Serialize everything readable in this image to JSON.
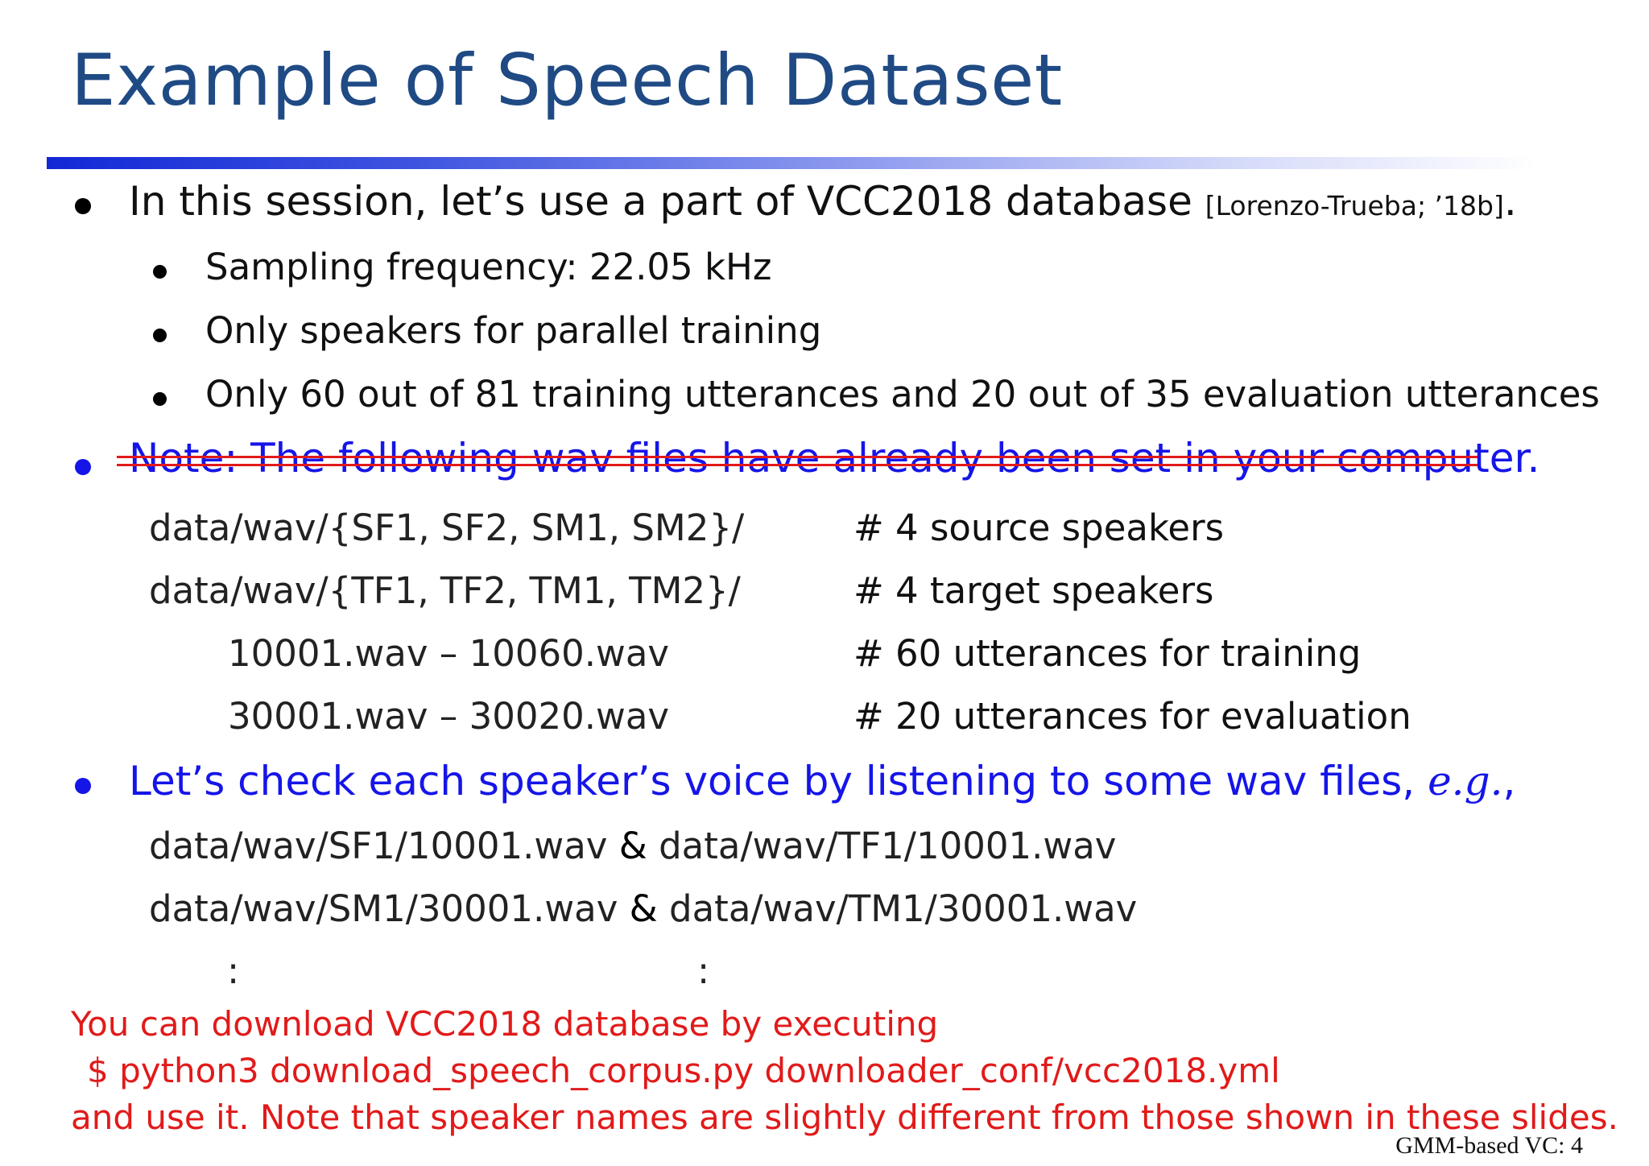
{
  "slide": {
    "title": "Example of Speech Dataset",
    "footer": "GMM-based VC: 4",
    "colors": {
      "title": "#1f4a84",
      "rule_start": "#1228d6",
      "blue_text": "#1515e8",
      "red_text": "#e11a1a"
    }
  },
  "bullets": {
    "intro": {
      "text": "In this session, let’s use a part of VCC2018 database ",
      "ref": "[Lorenzo-Trueba; ’18b]",
      "end": "."
    },
    "sub": [
      "Sampling frequency: 22.05 kHz",
      "Only speakers for parallel training",
      "Only 60 out of 81 training utterances and 20 out of 35 evaluation utterances"
    ],
    "note": "Note: The following wav files have already been set in your computer.",
    "files": [
      {
        "path": "data/wav/{SF1, SF2, SM1, SM2}/",
        "comment": "# 4 source speakers"
      },
      {
        "path": "data/wav/{TF1, TF2, TM1, TM2}/",
        "comment": "# 4 target speakers"
      },
      {
        "path": "10001.wav – 10060.wav",
        "comment": "# 60 utterances for training"
      },
      {
        "path": "30001.wav – 30020.wav",
        "comment": "# 20 utterances for evaluation"
      }
    ],
    "check": {
      "text": "Let’s check each speaker’s voice by listening to some wav files, ",
      "eg": "e.g.",
      "end": ","
    },
    "examples": [
      {
        "a": "data/wav/SF1/10001.wav",
        "amp": " & ",
        "b": "data/wav/TF1/10001.wav"
      },
      {
        "a": "data/wav/SM1/30001.wav",
        "amp": " & ",
        "b": "data/wav/TM1/30001.wav"
      }
    ],
    "ellipsis": [
      ":",
      ":"
    ]
  },
  "download": {
    "line1": "You can download VCC2018 database by executing",
    "line2": "$  python3  download_speech_corpus.py  downloader_conf/vcc2018.yml",
    "line3": "and use it.  Note that speaker names are slightly different from those shown in these slides."
  }
}
